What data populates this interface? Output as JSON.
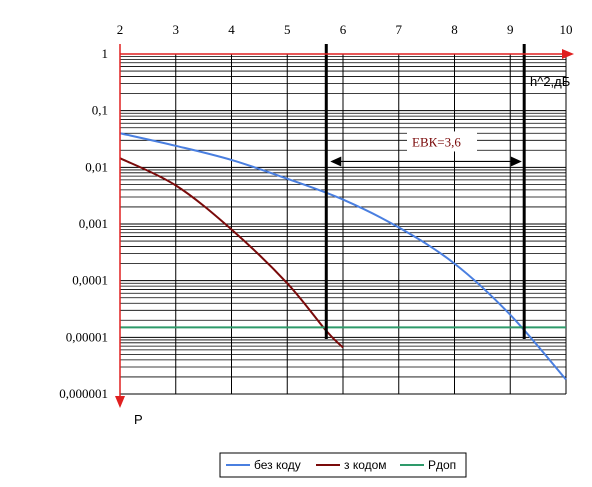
{
  "chart_data": {
    "type": "line",
    "title": "",
    "xlabel": "h^2,дБ",
    "ylabel": "P",
    "x_ticks": [
      "2",
      "3",
      "4",
      "5",
      "6",
      "7",
      "8",
      "9",
      "10"
    ],
    "y_ticks": [
      "1",
      "0,1",
      "0,01",
      "0,001",
      "0,0001",
      "0,00001",
      "0,000001"
    ],
    "xlim": [
      2,
      10
    ],
    "ylim": [
      1e-06,
      1
    ],
    "y_scale": "log",
    "x_axis_position": "top",
    "grid": true,
    "legend_position": "bottom",
    "series": [
      {
        "name": "без коду",
        "color": "#4a7fe0",
        "x": [
          2,
          3,
          4,
          5,
          6,
          7,
          8,
          9,
          10
        ],
        "y": [
          0.04,
          0.024,
          0.0135,
          0.0063,
          0.0027,
          0.00087,
          0.0002,
          2.5e-05,
          1.8e-06
        ]
      },
      {
        "name": "з кодом",
        "color": "#7a0a0a",
        "x": [
          2,
          3,
          4,
          5,
          5.7,
          6
        ],
        "y": [
          0.0145,
          0.0048,
          0.0008,
          9e-05,
          1.3e-05,
          6.6e-06
        ]
      },
      {
        "name": "Pдоп",
        "color": "#2e9a6a",
        "x": [
          2,
          10
        ],
        "y": [
          1.5e-05,
          1.5e-05
        ]
      }
    ],
    "vertical_lines": [
      5.7,
      9.25
    ],
    "annotation": {
      "text": "ЕВК=3,6",
      "x_from": 5.7,
      "x_to": 9.1,
      "y": 0.0127
    }
  }
}
